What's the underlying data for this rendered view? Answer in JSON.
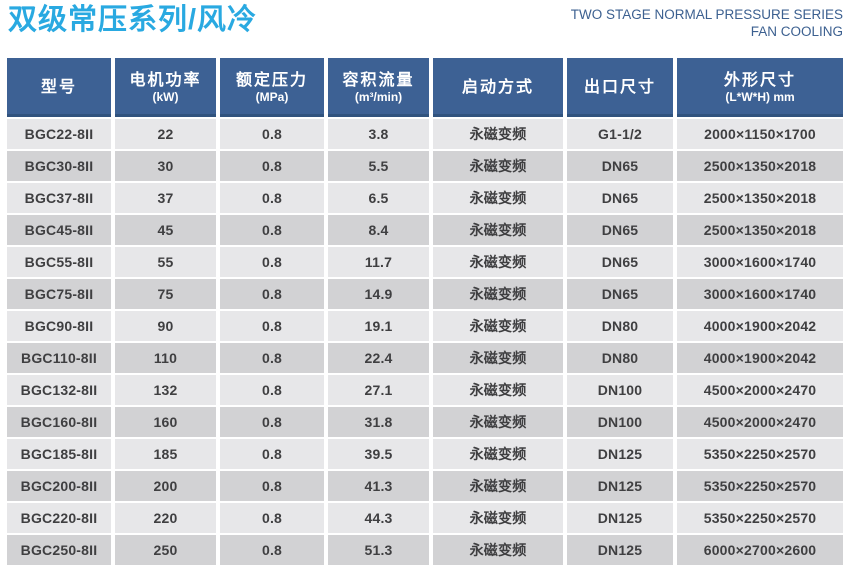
{
  "page": {
    "title": "双级常压系列/风冷",
    "subtitle_line1": "TWO STAGE NORMAL PRESSURE SERIES",
    "subtitle_line2": "FAN COOLING"
  },
  "colors": {
    "title": "#29a9e1",
    "subtitle": "#3c6090",
    "header_bg": "#3d6194",
    "header_border": "#31537e",
    "row_light": "#e7e7e9",
    "row_dark": "#d2d2d4",
    "cell_text": "#3f3f41"
  },
  "table": {
    "columns": [
      {
        "label": "型号",
        "unit": ""
      },
      {
        "label": "电机功率",
        "unit": "(kW)"
      },
      {
        "label": "额定压力",
        "unit": "(MPa)"
      },
      {
        "label": "容积流量",
        "unit": "(m³/min)"
      },
      {
        "label": "启动方式",
        "unit": ""
      },
      {
        "label": "出口尺寸",
        "unit": ""
      },
      {
        "label": "外形尺寸",
        "unit": "(L*W*H) mm"
      }
    ],
    "rows": [
      [
        "BGC22-8II",
        "22",
        "0.8",
        "3.8",
        "永磁变频",
        "G1-1/2",
        "2000×1150×1700"
      ],
      [
        "BGC30-8II",
        "30",
        "0.8",
        "5.5",
        "永磁变频",
        "DN65",
        "2500×1350×2018"
      ],
      [
        "BGC37-8II",
        "37",
        "0.8",
        "6.5",
        "永磁变频",
        "DN65",
        "2500×1350×2018"
      ],
      [
        "BGC45-8II",
        "45",
        "0.8",
        "8.4",
        "永磁变频",
        "DN65",
        "2500×1350×2018"
      ],
      [
        "BGC55-8II",
        "55",
        "0.8",
        "11.7",
        "永磁变频",
        "DN65",
        "3000×1600×1740"
      ],
      [
        "BGC75-8II",
        "75",
        "0.8",
        "14.9",
        "永磁变频",
        "DN65",
        "3000×1600×1740"
      ],
      [
        "BGC90-8II",
        "90",
        "0.8",
        "19.1",
        "永磁变频",
        "DN80",
        "4000×1900×2042"
      ],
      [
        "BGC110-8II",
        "110",
        "0.8",
        "22.4",
        "永磁变频",
        "DN80",
        "4000×1900×2042"
      ],
      [
        "BGC132-8II",
        "132",
        "0.8",
        "27.1",
        "永磁变频",
        "DN100",
        "4500×2000×2470"
      ],
      [
        "BGC160-8II",
        "160",
        "0.8",
        "31.8",
        "永磁变频",
        "DN100",
        "4500×2000×2470"
      ],
      [
        "BGC185-8II",
        "185",
        "0.8",
        "39.5",
        "永磁变频",
        "DN125",
        "5350×2250×2570"
      ],
      [
        "BGC200-8II",
        "200",
        "0.8",
        "41.3",
        "永磁变频",
        "DN125",
        "5350×2250×2570"
      ],
      [
        "BGC220-8II",
        "220",
        "0.8",
        "44.3",
        "永磁变频",
        "DN125",
        "5350×2250×2570"
      ],
      [
        "BGC250-8II",
        "250",
        "0.8",
        "51.3",
        "永磁变频",
        "DN125",
        "6000×2700×2600"
      ]
    ]
  }
}
